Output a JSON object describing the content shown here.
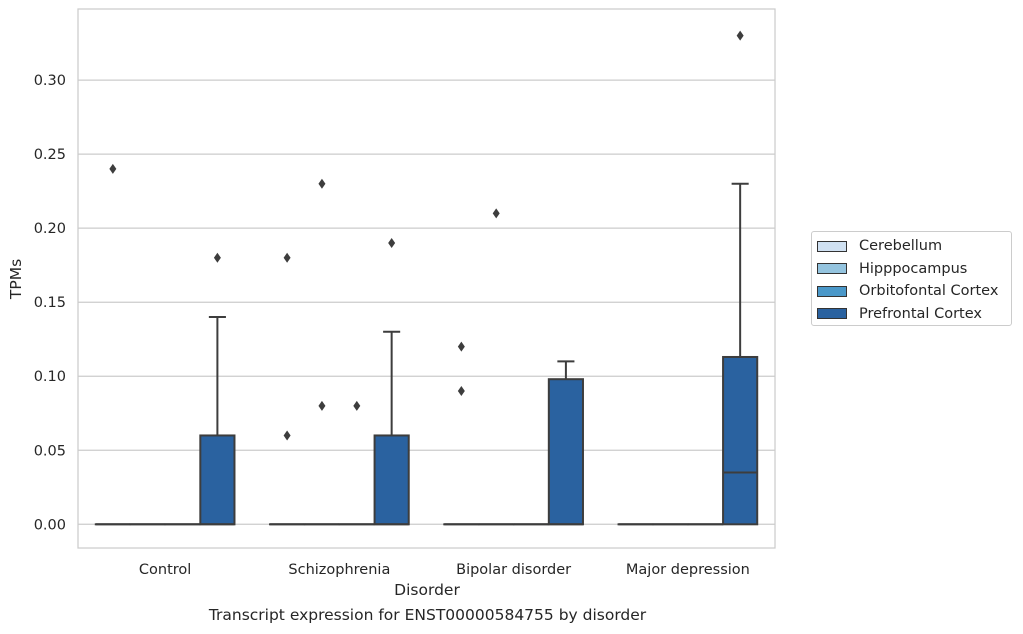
{
  "chart_data": {
    "type": "box",
    "title": "Transcript expression for ENST00000584755 by disorder",
    "xlabel": "Disorder",
    "ylabel": "TPMs",
    "ylim": [
      -0.016,
      0.348
    ],
    "yticks": [
      0.0,
      0.05,
      0.1,
      0.15,
      0.2,
      0.25,
      0.3
    ],
    "ytick_labels": [
      "0.00",
      "0.05",
      "0.10",
      "0.15",
      "0.20",
      "0.25",
      "0.30"
    ],
    "grid": true,
    "legend_position": "right",
    "categories": [
      "Control",
      "Schizophrenia",
      "Bipolar disorder",
      "Major depression"
    ],
    "series": [
      {
        "name": "Cerebellum",
        "color": "#d0e1f2",
        "boxes": [
          {
            "q1": 0,
            "median": 0,
            "q3": 0,
            "whisker_low": 0,
            "whisker_high": 0,
            "outliers": [
              0.24
            ]
          },
          {
            "q1": 0,
            "median": 0,
            "q3": 0,
            "whisker_low": 0,
            "whisker_high": 0,
            "outliers": [
              0.18,
              0.06
            ]
          },
          {
            "q1": 0,
            "median": 0,
            "q3": 0,
            "whisker_low": 0,
            "whisker_high": 0,
            "outliers": [
              0.12,
              0.09
            ]
          },
          {
            "q1": 0,
            "median": 0,
            "q3": 0,
            "whisker_low": 0,
            "whisker_high": 0,
            "outliers": []
          }
        ]
      },
      {
        "name": "Hipppocampus",
        "color": "#94c4df",
        "boxes": [
          {
            "q1": 0,
            "median": 0,
            "q3": 0,
            "whisker_low": 0,
            "whisker_high": 0,
            "outliers": []
          },
          {
            "q1": 0,
            "median": 0,
            "q3": 0,
            "whisker_low": 0,
            "whisker_high": 0,
            "outliers": [
              0.23,
              0.08
            ]
          },
          {
            "q1": 0,
            "median": 0,
            "q3": 0,
            "whisker_low": 0,
            "whisker_high": 0,
            "outliers": [
              0.21
            ]
          },
          {
            "q1": 0,
            "median": 0,
            "q3": 0,
            "whisker_low": 0,
            "whisker_high": 0,
            "outliers": []
          }
        ]
      },
      {
        "name": "Orbitofontal Cortex",
        "color": "#4a98c9",
        "boxes": [
          {
            "q1": 0,
            "median": 0,
            "q3": 0,
            "whisker_low": 0,
            "whisker_high": 0,
            "outliers": []
          },
          {
            "q1": 0,
            "median": 0,
            "q3": 0,
            "whisker_low": 0,
            "whisker_high": 0,
            "outliers": [
              0.08
            ]
          },
          {
            "q1": 0,
            "median": 0,
            "q3": 0,
            "whisker_low": 0,
            "whisker_high": 0,
            "outliers": []
          },
          {
            "q1": 0,
            "median": 0,
            "q3": 0,
            "whisker_low": 0,
            "whisker_high": 0,
            "outliers": []
          }
        ]
      },
      {
        "name": "Prefrontal Cortex",
        "color": "#2a62a0",
        "boxes": [
          {
            "q1": 0,
            "median": 0,
            "q3": 0.06,
            "whisker_low": 0,
            "whisker_high": 0.14,
            "outliers": [
              0.18
            ]
          },
          {
            "q1": 0,
            "median": 0,
            "q3": 0.06,
            "whisker_low": 0,
            "whisker_high": 0.13,
            "outliers": [
              0.19
            ]
          },
          {
            "q1": 0,
            "median": 0,
            "q3": 0.098,
            "whisker_low": 0,
            "whisker_high": 0.11,
            "outliers": []
          },
          {
            "q1": 0,
            "median": 0.035,
            "q3": 0.113,
            "whisker_low": 0,
            "whisker_high": 0.23,
            "outliers": [
              0.33
            ]
          }
        ]
      }
    ]
  }
}
